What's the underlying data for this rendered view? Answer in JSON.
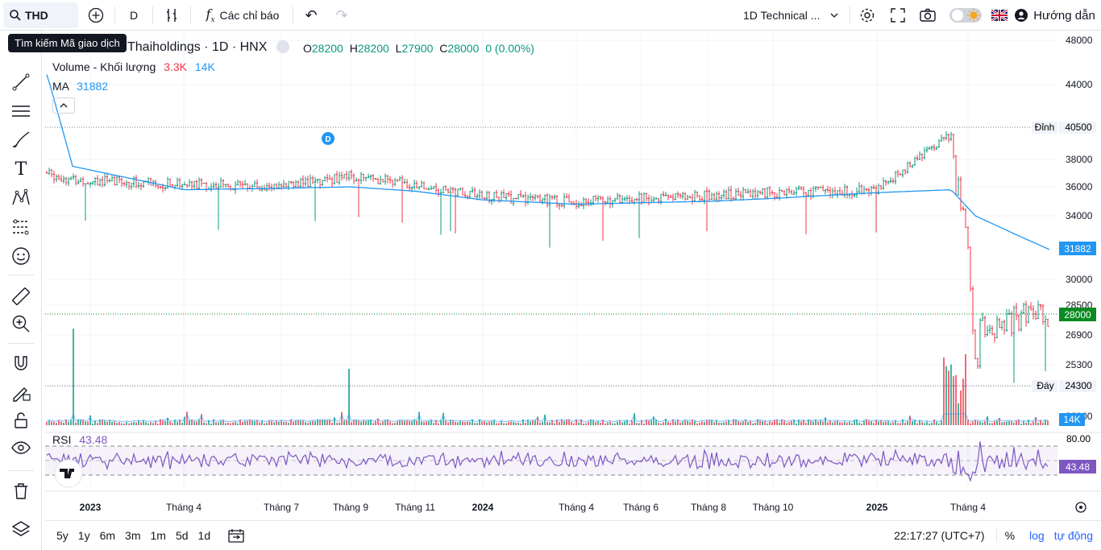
{
  "toolbar": {
    "symbol": "THD",
    "interval": "D",
    "indicators_label": "Các chỉ báo",
    "layout_name": "1D Technical ...",
    "help_label": "Hướng dẫn",
    "search_tooltip": "Tìm kiếm Mã giao dịch",
    "icons": [
      "search-icon",
      "plus-circle-icon",
      "candle-style-icon",
      "fx-icon",
      "undo-icon",
      "redo-icon",
      "chevron-down-icon",
      "gear-icon",
      "fullscreen-icon",
      "camera-icon",
      "theme-toggle-icon",
      "uk-flag-icon",
      "user-icon"
    ]
  },
  "legend": {
    "name": "Thaiholdings · 1D · HNX",
    "o_label": "O",
    "o": "28200",
    "h_label": "H",
    "h": "28200",
    "l_label": "L",
    "l": "27900",
    "c_label": "C",
    "c": "28000",
    "change": "0 (0.00%)",
    "volume_label": "Volume - Khối lượng",
    "volume_a": "3.3K",
    "volume_b": "14K",
    "ma_label": "MA",
    "ma_value": "31882",
    "rsi_label": "RSI",
    "rsi_value": "43.48"
  },
  "price_axis": {
    "ticks": [
      "48000",
      "44000",
      "38000",
      "36000",
      "34000",
      "30000",
      "28500",
      "26900",
      "25300",
      "24300",
      "22000"
    ],
    "high_label": "Đỉnh",
    "high_value": "40500",
    "low_label": "Đáy",
    "low_value": "24300",
    "ma_badge": "31882",
    "last_badge": "28000",
    "vol_badge": "14K",
    "rsi_top": "80.00",
    "rsi_badge": "43.48"
  },
  "time_axis": [
    "2023",
    "Tháng 4",
    "Tháng 7",
    "Tháng 9",
    "Tháng 11",
    "2024",
    "Tháng 4",
    "Tháng 6",
    "Tháng 8",
    "Tháng 10",
    "2025",
    "Tháng 4"
  ],
  "event_marker": "D",
  "ranges": [
    "5y",
    "1y",
    "6m",
    "3m",
    "1m",
    "5d",
    "1d"
  ],
  "bottom": {
    "time": "22:17:27 (UTC+7)",
    "percent": "%",
    "log": "log",
    "auto": "tự động"
  },
  "colors": {
    "up": "#089981",
    "down": "#f23645",
    "ma": "#2196f3",
    "rsi": "#7e57c2",
    "last": "#0a8a22"
  },
  "left_icons": [
    "crosshair-icon",
    "trendline-icon",
    "fib-icon",
    "brush-icon",
    "text-icon",
    "pattern-icon",
    "prediction-icon",
    "emoji-icon",
    "ruler-icon",
    "zoom-in-icon",
    "magnet-icon",
    "lock-drawing-icon",
    "lock-icon",
    "eye-icon",
    "trash-icon",
    "layers-icon"
  ],
  "chart_data": {
    "type": "line",
    "title": "Thaiholdings · 1D · HNX",
    "x": [
      "2022-12",
      "2023-01",
      "2023-04",
      "2023-07",
      "2023-09",
      "2023-11",
      "2024-01",
      "2024-04",
      "2024-06",
      "2024-08",
      "2024-10",
      "2025-01",
      "2025-03",
      "2025-04",
      "2025-05",
      "2025-06"
    ],
    "series": [
      {
        "name": "MA",
        "values": [
          44900,
          37500,
          35800,
          35900,
          36000,
          35700,
          35100,
          34800,
          34900,
          35000,
          35200,
          35600,
          35800,
          34000,
          32600,
          31882
        ]
      }
    ],
    "close_path": [
      37000,
      36500,
      36200,
      36000,
      36800,
      36200,
      35300,
      35000,
      35200,
      35400,
      35600,
      35800,
      40000,
      27000,
      27900,
      28000
    ],
    "ylim": [
      21500,
      48500
    ],
    "high": 40500,
    "low": 24300,
    "last": 28000,
    "rsi": {
      "last": 43.48,
      "upper": 70,
      "lower": 30
    }
  }
}
